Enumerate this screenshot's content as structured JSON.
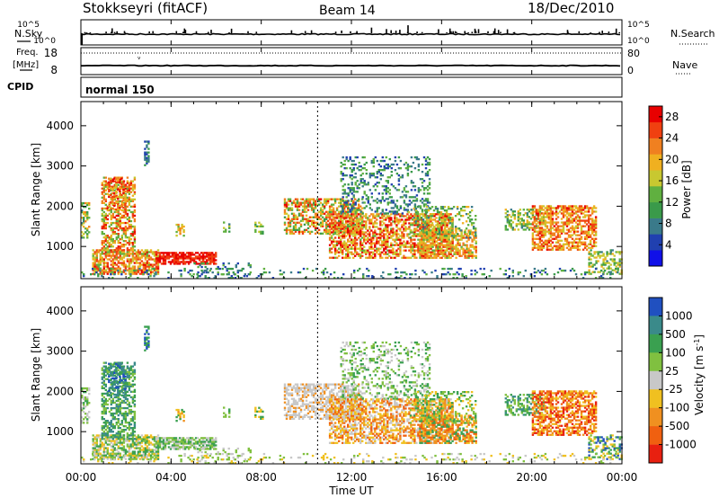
{
  "header": {
    "station": "Stokkseyri (fitACF)",
    "beam": "Beam 14",
    "date": "18/Dec/2010"
  },
  "noise_panel": {
    "left_label": "N.Sky",
    "right_label": "N.Search",
    "left_ticks": [
      "10^5",
      "10^0"
    ],
    "right_ticks": [
      "10^5",
      "10^0"
    ]
  },
  "freq_panel": {
    "left_label_1": "Freq.",
    "left_label_2": "[MHz]",
    "left_ticks": [
      "18",
      "8"
    ],
    "right_label": "Nave",
    "right_ticks": [
      "80",
      "0"
    ]
  },
  "cpid_panel": {
    "label": "CPID",
    "value": "normal 150"
  },
  "time_axis": {
    "label": "Time UT",
    "ticks": [
      "00:00",
      "04:00",
      "08:00",
      "12:00",
      "16:00",
      "20:00",
      "00:00"
    ]
  },
  "chart_data": [
    {
      "type": "heatmap",
      "name": "power",
      "ylabel": "Slant Range [km]",
      "yticks": [
        "1000",
        "2000",
        "3000",
        "4000"
      ],
      "ylim": [
        200,
        4600
      ],
      "xlim_hours": [
        0,
        24
      ],
      "colorbar": {
        "label": "Power [dB]",
        "ticks": [
          "4",
          "8",
          "12",
          "16",
          "20",
          "24",
          "28"
        ],
        "range": [
          0,
          30
        ],
        "colors": [
          "#1010e8",
          "#2040b0",
          "#3a7a8a",
          "#3a9a4a",
          "#60b040",
          "#c8c830",
          "#f0b020",
          "#f08020",
          "#f04010",
          "#e80000"
        ]
      }
    },
    {
      "type": "heatmap",
      "name": "velocity",
      "ylabel": "Slant Range [km]",
      "yticks": [
        "1000",
        "2000",
        "3000",
        "4000"
      ],
      "ylim": [
        200,
        4600
      ],
      "xlim_hours": [
        0,
        24
      ],
      "colorbar": {
        "label": "Velocity [m s^-1]",
        "ticks": [
          "1000",
          "500",
          "100",
          "25",
          "-25",
          "-100",
          "-500",
          "-1000"
        ],
        "colors": [
          "#2050c0",
          "#3a8a8a",
          "#3aa050",
          "#80c040",
          "#c8c8c8",
          "#f0c020",
          "#f09020",
          "#f06010",
          "#e82010"
        ]
      }
    }
  ]
}
